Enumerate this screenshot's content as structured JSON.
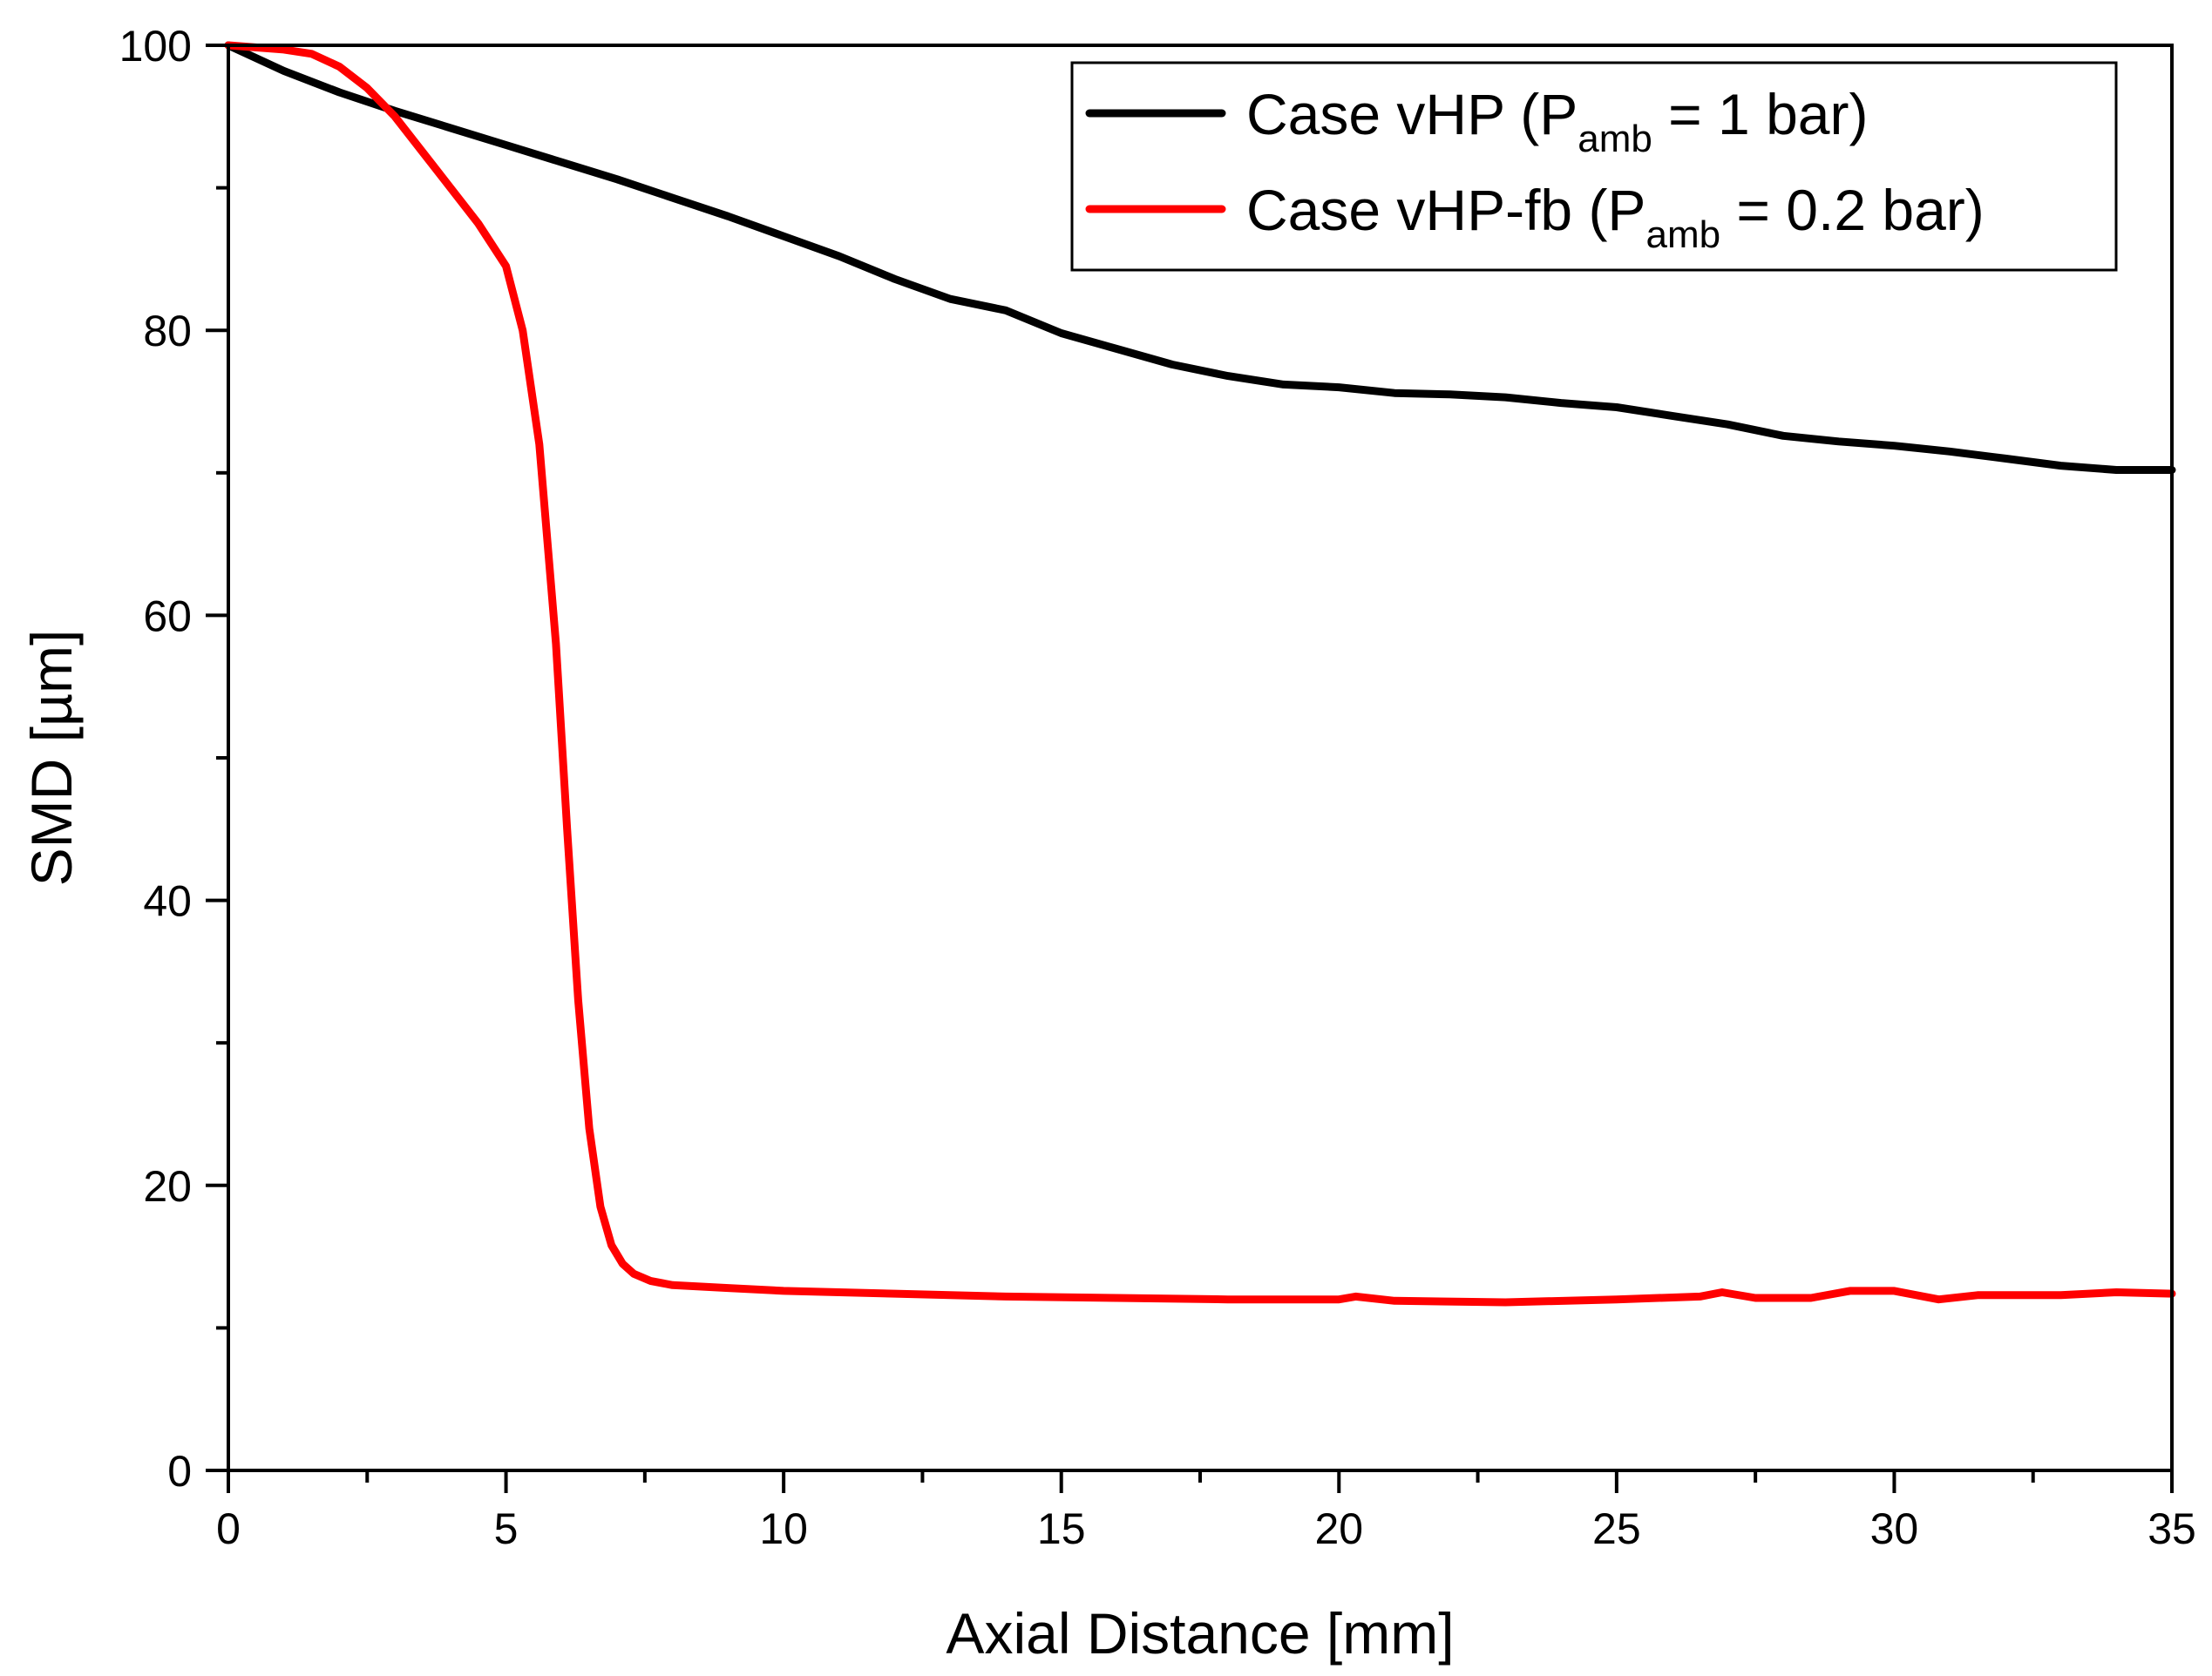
{
  "chart_data": {
    "type": "line",
    "title": "",
    "xlabel": "Axial Distance [mm]",
    "ylabel": "SMD [µm]",
    "xlim": [
      0,
      35
    ],
    "ylim": [
      0,
      100
    ],
    "x_ticks": [
      "0",
      "5",
      "10",
      "15",
      "20",
      "25",
      "30",
      "35"
    ],
    "y_ticks": [
      "0",
      "20",
      "40",
      "60",
      "80",
      "100"
    ],
    "grid": false,
    "legend_position": "top-right",
    "series": [
      {
        "name": "Case vHP (P_amb = 1 bar)",
        "legend_prefix": "Case vHP (P",
        "legend_sub": "amb",
        "legend_suffix": " = 1 bar)",
        "color": "#000000",
        "x": [
          0,
          1,
          2,
          3,
          4,
          5,
          6,
          7,
          8,
          9,
          10,
          11,
          12,
          13,
          14,
          15,
          16,
          17,
          18,
          19,
          20,
          21,
          22,
          23,
          24,
          25,
          26,
          27,
          28,
          29,
          30,
          31,
          32,
          33,
          34,
          35
        ],
        "y": [
          100,
          98.2,
          96.7,
          95.4,
          94.2,
          93.0,
          91.8,
          90.6,
          89.3,
          88.0,
          86.6,
          85.2,
          83.6,
          82.2,
          81.4,
          79.8,
          78.7,
          77.6,
          76.8,
          76.2,
          76.0,
          75.6,
          75.5,
          75.3,
          74.9,
          74.6,
          74.0,
          73.4,
          72.6,
          72.2,
          71.9,
          71.5,
          71.0,
          70.5,
          70.2,
          70.2
        ]
      },
      {
        "name": "Case vHP-fb (P_amb = 0.2 bar)",
        "legend_prefix": "Case vHP-fb (P",
        "legend_sub": "amb",
        "legend_suffix": " = 0.2 bar)",
        "color": "#ff0000",
        "x": [
          0,
          1,
          1.5,
          2,
          2.5,
          3,
          3.5,
          4,
          4.5,
          5,
          5.3,
          5.6,
          5.9,
          6.1,
          6.3,
          6.5,
          6.7,
          6.9,
          7.1,
          7.3,
          7.6,
          8,
          9,
          10,
          12,
          14,
          16,
          18,
          20,
          20.3,
          21,
          23,
          25,
          26.5,
          26.9,
          27.5,
          28.5,
          29.2,
          30,
          30.8,
          31.5,
          33,
          34,
          35
        ],
        "y": [
          100,
          99.7,
          99.4,
          98.5,
          97.0,
          95.0,
          92.5,
          90.0,
          87.5,
          84.5,
          80.0,
          72.0,
          58.0,
          45.0,
          33.0,
          24.0,
          18.5,
          15.8,
          14.5,
          13.8,
          13.3,
          13.0,
          12.8,
          12.6,
          12.4,
          12.2,
          12.1,
          12.0,
          12.0,
          12.2,
          11.9,
          11.8,
          12.0,
          12.2,
          12.5,
          12.1,
          12.1,
          12.6,
          12.6,
          12.0,
          12.3,
          12.3,
          12.5,
          12.4
        ]
      }
    ]
  }
}
